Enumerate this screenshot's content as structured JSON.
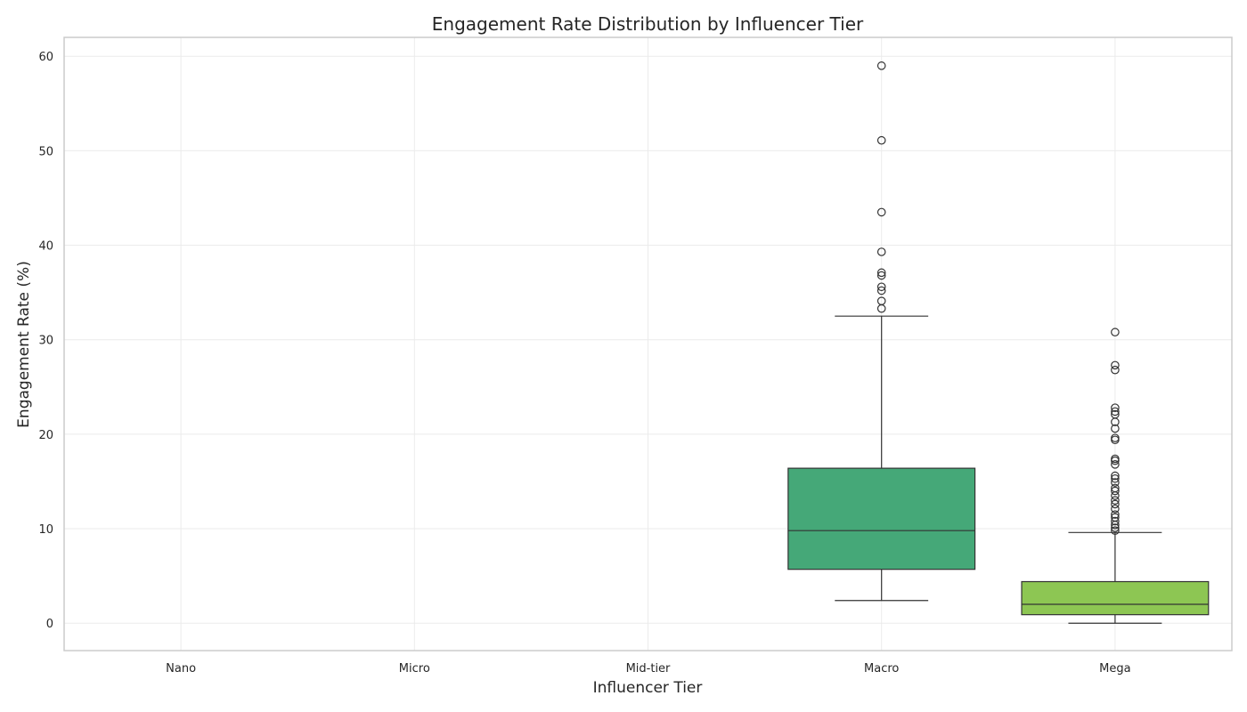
{
  "chart_data": {
    "type": "box",
    "title": "Engagement Rate Distribution by Influencer Tier",
    "xlabel": "Influencer Tier",
    "ylabel": "Engagement Rate (%)",
    "ylim": [
      -2.9,
      62
    ],
    "yticks": [
      0,
      10,
      20,
      30,
      40,
      50,
      60
    ],
    "grid": true,
    "categories": [
      "Nano",
      "Micro",
      "Mid-tier",
      "Macro",
      "Mega"
    ],
    "boxes": [
      {
        "category": "Nano"
      },
      {
        "category": "Micro"
      },
      {
        "category": "Mid-tier"
      },
      {
        "category": "Macro",
        "color": "#45a878",
        "whisker_low": 2.4,
        "q1": 5.7,
        "median": 9.8,
        "q3": 16.4,
        "whisker_high": 32.5,
        "fliers": [
          33.3,
          34.1,
          35.2,
          35.6,
          36.8,
          37.1,
          39.3,
          43.5,
          51.1,
          59.0
        ]
      },
      {
        "category": "Mega",
        "color": "#8dc653",
        "whisker_low": 0.0,
        "q1": 0.9,
        "median": 2.0,
        "q3": 4.4,
        "whisker_high": 9.6,
        "fliers": [
          9.8,
          10.1,
          10.4,
          10.8,
          11.2,
          11.5,
          12.1,
          12.6,
          13.0,
          13.5,
          14.0,
          14.3,
          14.9,
          15.3,
          15.6,
          16.8,
          17.2,
          17.4,
          19.4,
          19.6,
          20.6,
          21.3,
          22.1,
          22.4,
          22.8,
          26.8,
          27.3,
          30.8
        ]
      }
    ]
  }
}
